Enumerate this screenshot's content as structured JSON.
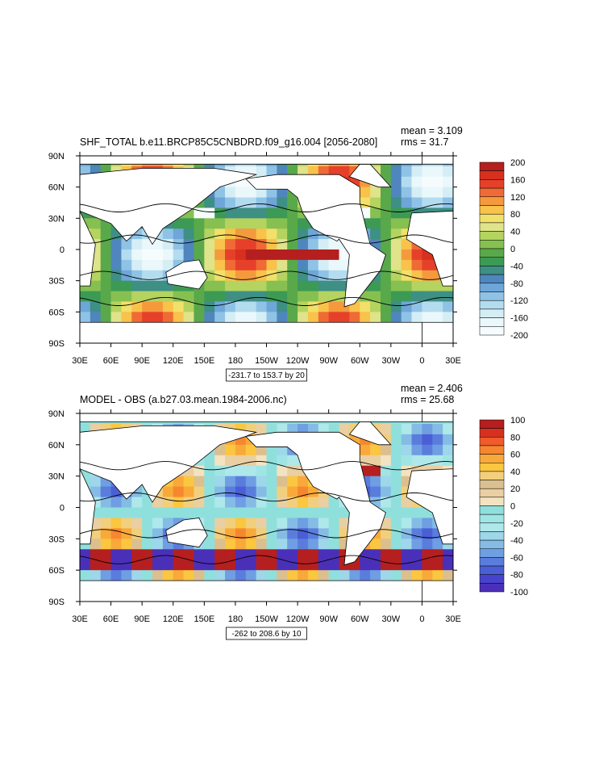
{
  "chart_data": [
    {
      "type": "heatmap",
      "title": "SHF_TOTAL b.e11.BRCP85C5CNBDRD.f09_g16.004 [2056-2080]",
      "stats": {
        "mean": "mean = 3.109",
        "rms": "rms = 31.7"
      },
      "x_ticks": [
        "30E",
        "60E",
        "90E",
        "120E",
        "150E",
        "180",
        "150W",
        "120W",
        "90W",
        "60W",
        "30W",
        "0",
        "30E"
      ],
      "y_ticks": [
        "90N",
        "60N",
        "30N",
        "0",
        "30S",
        "60S",
        "90S"
      ],
      "xlim": [
        30,
        390
      ],
      "ylim": [
        -90,
        90
      ],
      "range_label": "-231.7 to 153.7 by 20",
      "colorbar": {
        "labels": [
          "200",
          "160",
          "120",
          "80",
          "40",
          "0",
          "-40",
          "-80",
          "-120",
          "-160",
          "-200"
        ],
        "colors": [
          "#b51f1f",
          "#d7301f",
          "#e6402a",
          "#f06a35",
          "#f49a3d",
          "#f9c24a",
          "#f2e06a",
          "#dfe38a",
          "#b4d35f",
          "#86c051",
          "#59a94a",
          "#3c9a55",
          "#3e8f84",
          "#4f86be",
          "#6ea6d8",
          "#8fc3e6",
          "#b3dcef",
          "#d5eef6",
          "#eaf8fb",
          "#f6fcfd"
        ]
      }
    },
    {
      "type": "heatmap",
      "title": "MODEL - OBS (a.b27.03.mean.1984-2006.nc)",
      "stats": {
        "mean": "mean = 2.406",
        "rms": "rms = 25.68"
      },
      "x_ticks": [
        "30E",
        "60E",
        "90E",
        "120E",
        "150E",
        "180",
        "150W",
        "120W",
        "90W",
        "60W",
        "30W",
        "0",
        "30E"
      ],
      "y_ticks": [
        "90N",
        "60N",
        "30N",
        "0",
        "30S",
        "60S",
        "90S"
      ],
      "xlim": [
        30,
        390
      ],
      "ylim": [
        -90,
        90
      ],
      "range_label": "-262 to 208.6 by 10",
      "colorbar": {
        "labels": [
          "100",
          "80",
          "60",
          "40",
          "20",
          "0",
          "-20",
          "-40",
          "-60",
          "-80",
          "-100"
        ],
        "colors": [
          "#b51f1f",
          "#d7301f",
          "#ef5b2a",
          "#f6872f",
          "#f9a93a",
          "#fbc640",
          "#f2cf7c",
          "#dbbf8f",
          "#e9cfa2",
          "#f3e3c0",
          "#8fe0dc",
          "#9fe5e4",
          "#aee8ea",
          "#9ed6ea",
          "#84bce6",
          "#6f9ee2",
          "#5a7ddd",
          "#4a5fd6",
          "#4843cd",
          "#4a30b8"
        ]
      }
    }
  ]
}
